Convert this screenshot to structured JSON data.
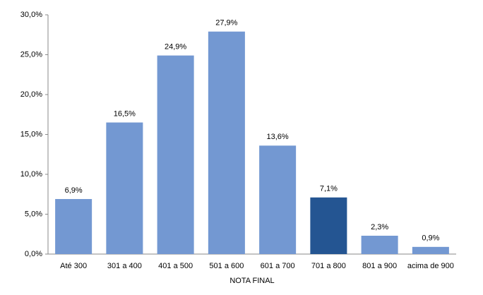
{
  "chart_data": {
    "type": "bar",
    "x_label": "NOTA FINAL",
    "categories": [
      "Até 300",
      "301 a 400",
      "401 a 500",
      "501 a 600",
      "601 a 700",
      "701 a 800",
      "801 a 900",
      "acima de 900"
    ],
    "values": [
      6.9,
      16.5,
      24.9,
      27.9,
      13.6,
      7.1,
      2.3,
      0.9
    ],
    "value_labels": [
      "6,9%",
      "16,5%",
      "24,9%",
      "27,9%",
      "13,6%",
      "7,1%",
      "2,3%",
      "0,9%"
    ],
    "colors": [
      "#7398d2",
      "#7398d2",
      "#7398d2",
      "#7398d2",
      "#7398d2",
      "#245592",
      "#7398d2",
      "#7398d2"
    ],
    "ylim": [
      0,
      30
    ],
    "yticks": [
      {
        "value": 0,
        "label": "0,0%"
      },
      {
        "value": 5,
        "label": "5,0%"
      },
      {
        "value": 10,
        "label": "10,0%"
      },
      {
        "value": 15,
        "label": "15,0%"
      },
      {
        "value": 20,
        "label": "20,0%"
      },
      {
        "value": 25,
        "label": "25,0%"
      },
      {
        "value": 30,
        "label": "30,0%"
      }
    ],
    "grid": false
  }
}
